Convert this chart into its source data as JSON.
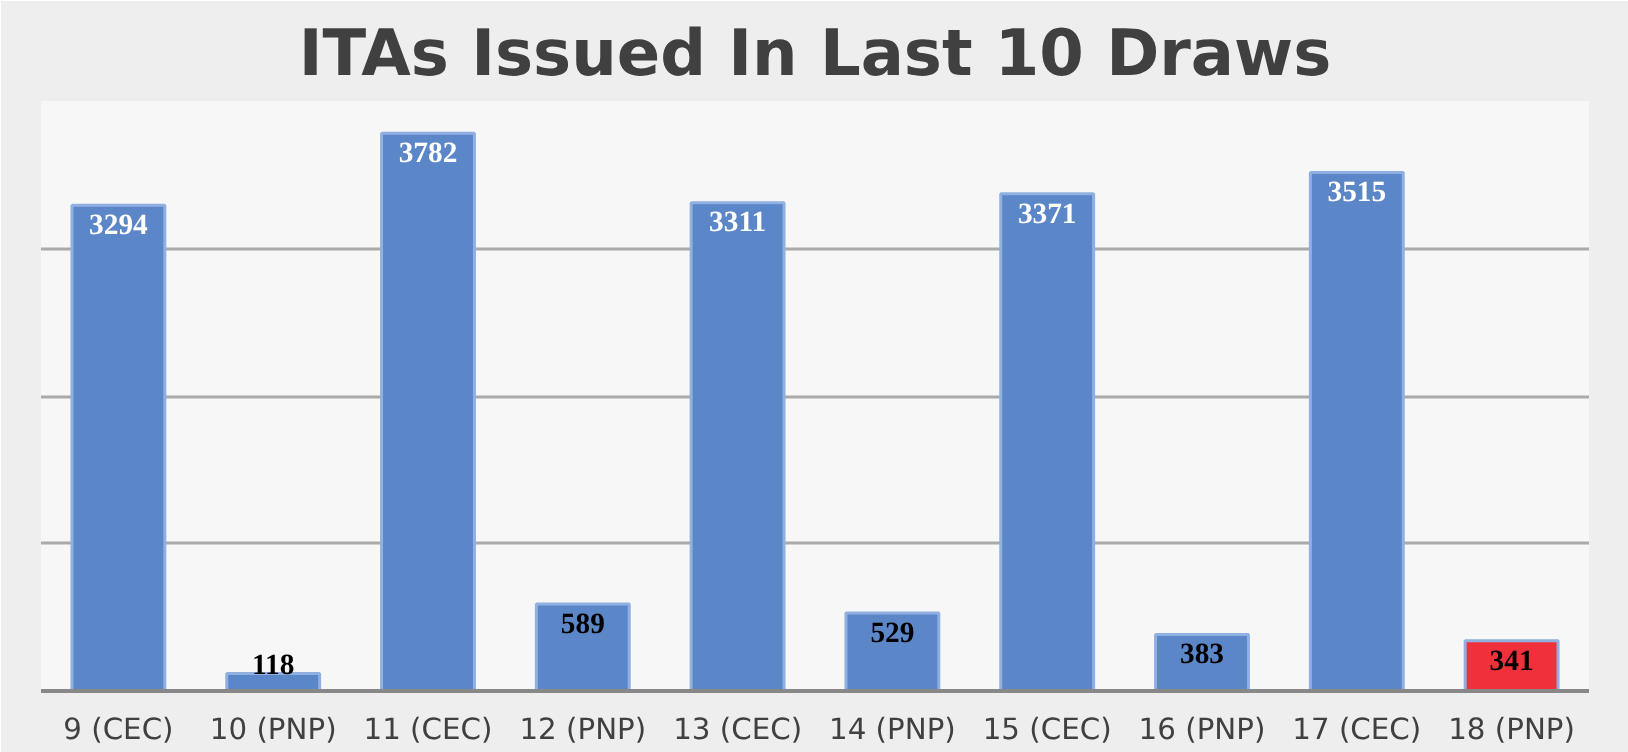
{
  "chart_data": {
    "type": "bar",
    "title": "ITAs Issued In Last 10 Draws",
    "categories": [
      "9 (CEC)",
      "10 (PNP)",
      "11 (CEC)",
      "12 (PNP)",
      "13 (CEC)",
      "14 (PNP)",
      "15 (CEC)",
      "16 (PNP)",
      "17 (CEC)",
      "18 (PNP)"
    ],
    "values": [
      3294,
      118,
      3782,
      589,
      3311,
      529,
      3371,
      383,
      3515,
      341
    ],
    "colors": [
      "#5b86c8",
      "#5b86c8",
      "#5b86c8",
      "#5b86c8",
      "#5b86c8",
      "#5b86c8",
      "#5b86c8",
      "#5b86c8",
      "#5b86c8",
      "#f0303a"
    ],
    "ylim": [
      0,
      4000
    ],
    "yticks": [
      {
        "value": 0,
        "label": null
      },
      {
        "value": 1000,
        "label": null
      },
      {
        "value": 2000,
        "label": null
      },
      {
        "value": 3000,
        "label": null
      },
      {
        "value": 4000,
        "label": null
      }
    ],
    "tick_labels": "x",
    "grid": "y",
    "data_labels": true
  }
}
